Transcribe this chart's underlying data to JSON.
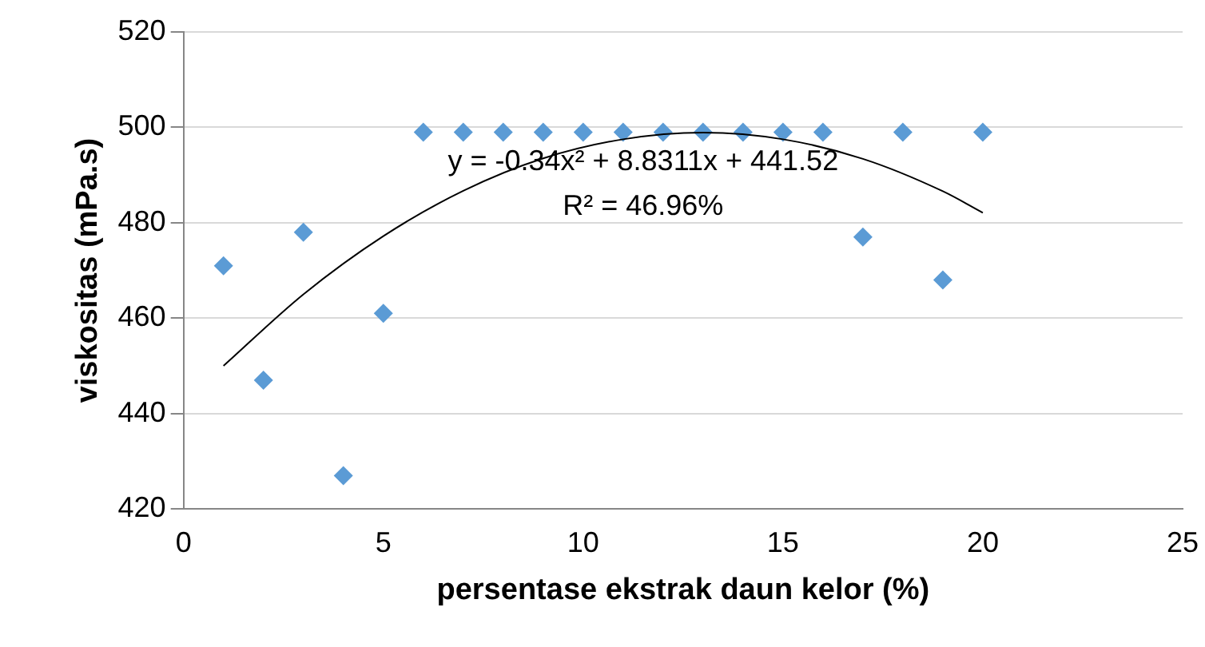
{
  "chart_data": {
    "type": "scatter",
    "xlabel": "persentase ekstrak daun kelor (%)",
    "ylabel": "viskositas (mPa.s)",
    "xlim": [
      0,
      25
    ],
    "xticks": [
      0,
      5,
      10,
      15,
      20,
      25
    ],
    "ylim": [
      420,
      520
    ],
    "yticks": [
      420,
      440,
      460,
      480,
      500,
      520
    ],
    "grid": "y",
    "legend": false,
    "annotations": [
      "y = -0.34x² + 8.8311x + 441.52",
      "R² = 46.96%"
    ],
    "series": [
      {
        "marker": "diamond",
        "color": "#5b9bd5",
        "x": [
          1,
          2,
          3,
          4,
          5,
          6,
          7,
          8,
          9,
          10,
          11,
          12,
          13,
          14,
          15,
          16,
          17,
          18,
          19,
          20
        ],
        "values": [
          471,
          447,
          478,
          427,
          461,
          499,
          499,
          499,
          499,
          499,
          499,
          499,
          499,
          499,
          499,
          499,
          477,
          499,
          468,
          499
        ]
      },
      {
        "type": "line",
        "marker": "none",
        "color": "#000000",
        "x": [
          1,
          3,
          5,
          7,
          9,
          11,
          13,
          15,
          17,
          19,
          20
        ],
        "values": [
          450.0,
          465.0,
          477.2,
          486.7,
          493.5,
          497.5,
          498.9,
          497.5,
          493.4,
          486.6,
          482.1
        ]
      }
    ]
  }
}
